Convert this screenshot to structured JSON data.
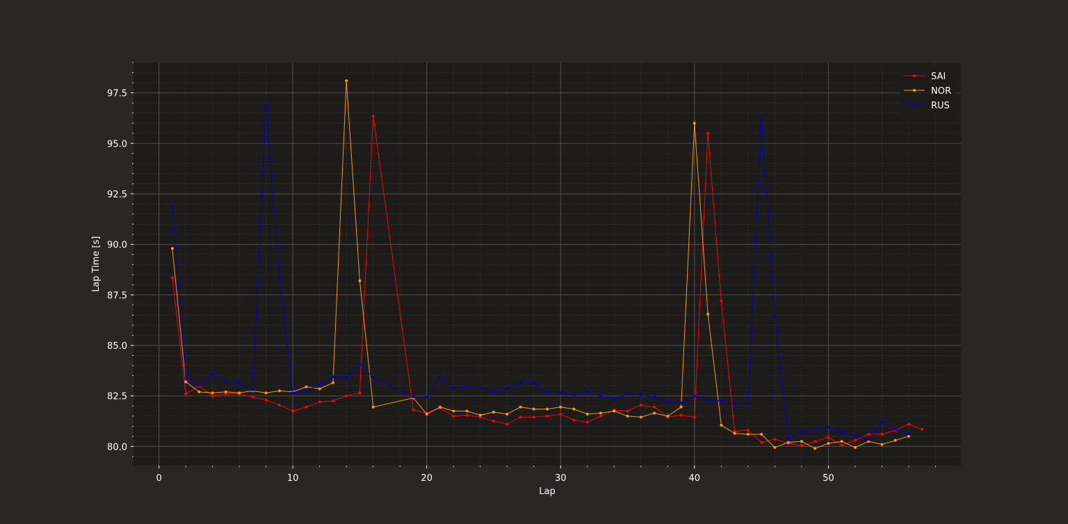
{
  "colors": {
    "figure_bg": "#292625",
    "plot_bg": "#1e1c1b",
    "grid_major": "#4a4745",
    "grid_minor": "#353230",
    "text": "#ffffff"
  },
  "chart_data": {
    "type": "line",
    "xlabel": "Lap",
    "ylabel": "Lap Time [s]",
    "xlim": [
      -1.9,
      59.9
    ],
    "ylim": [
      79.05,
      99.0
    ],
    "xticks": [
      0,
      10,
      20,
      30,
      40,
      50
    ],
    "xtick_labels": [
      "0",
      "10",
      "20",
      "30",
      "40",
      "50"
    ],
    "yticks": [
      80.0,
      82.5,
      85.0,
      87.5,
      90.0,
      92.5,
      95.0,
      97.5
    ],
    "ytick_labels": [
      "80.0",
      "82.5",
      "85.0",
      "87.5",
      "90.0",
      "92.5",
      "95.0",
      "97.5"
    ],
    "grid": true,
    "minor_grid": true,
    "legend_position": "top-right",
    "series": [
      {
        "name": "SAI",
        "color": "#ff0000",
        "x": [
          1,
          2,
          3,
          4,
          5,
          6,
          7,
          8,
          9,
          10,
          11,
          12,
          13,
          14,
          15,
          16,
          19,
          20,
          21,
          22,
          23,
          24,
          25,
          26,
          27,
          28,
          29,
          30,
          31,
          32,
          33,
          34,
          35,
          36,
          37,
          38,
          39,
          40,
          41,
          42,
          43,
          44,
          45,
          46,
          47,
          48,
          49,
          50,
          51,
          52,
          53,
          54,
          55,
          56,
          57
        ],
        "y": [
          88.35,
          82.6,
          83.0,
          82.5,
          82.6,
          82.6,
          82.45,
          82.3,
          82.05,
          81.75,
          81.95,
          82.2,
          82.25,
          82.5,
          82.65,
          96.35,
          81.8,
          81.65,
          81.9,
          81.5,
          81.55,
          81.45,
          81.25,
          81.1,
          81.45,
          81.45,
          81.5,
          81.6,
          81.3,
          81.2,
          81.5,
          81.8,
          81.75,
          82.05,
          81.95,
          81.45,
          81.55,
          81.45,
          95.5,
          87.2,
          80.75,
          80.8,
          80.2,
          80.35,
          80.15,
          80.05,
          80.25,
          80.45,
          80.05,
          80.3,
          80.6,
          80.6,
          80.8,
          81.1,
          80.85
        ]
      },
      {
        "name": "NOR",
        "color": "#ff9900",
        "x": [
          1,
          2,
          3,
          4,
          5,
          6,
          7,
          8,
          9,
          10,
          11,
          12,
          13,
          14,
          15,
          16,
          19,
          20,
          21,
          22,
          23,
          24,
          25,
          26,
          27,
          28,
          29,
          30,
          31,
          32,
          33,
          34,
          35,
          36,
          37,
          38,
          39,
          40,
          41,
          42,
          43,
          44,
          45,
          46,
          47,
          48,
          49,
          50,
          51,
          52,
          53,
          54,
          55,
          56
        ],
        "y": [
          89.8,
          83.2,
          82.7,
          82.65,
          82.7,
          82.65,
          82.75,
          82.65,
          82.75,
          82.7,
          82.95,
          82.85,
          83.15,
          98.1,
          88.2,
          81.95,
          82.4,
          81.6,
          81.95,
          81.75,
          81.75,
          81.55,
          81.7,
          81.6,
          81.95,
          81.85,
          81.85,
          81.95,
          81.85,
          81.6,
          81.65,
          81.75,
          81.5,
          81.45,
          81.65,
          81.5,
          81.95,
          96.0,
          86.55,
          81.05,
          80.65,
          80.6,
          80.6,
          79.95,
          80.2,
          80.25,
          79.9,
          80.15,
          80.25,
          79.95,
          80.25,
          80.1,
          80.3,
          80.5
        ]
      },
      {
        "name": "RUS",
        "color": "#0000cc",
        "x": [
          1,
          2,
          3,
          4,
          5,
          6,
          7,
          8,
          9,
          10,
          11,
          12,
          13,
          14,
          15,
          16,
          19,
          20,
          21,
          22,
          23,
          24,
          25,
          26,
          27,
          28,
          29,
          30,
          31,
          32,
          33,
          34,
          35,
          36,
          37,
          38,
          39,
          40,
          41,
          42,
          43,
          44,
          45,
          46,
          47,
          48,
          49,
          50,
          51,
          52,
          53,
          54,
          55,
          56
        ],
        "y": [
          91.9,
          83.35,
          83.05,
          83.6,
          83.2,
          83.15,
          82.8,
          96.9,
          88.35,
          82.65,
          82.75,
          83.05,
          83.45,
          83.4,
          84.1,
          83.4,
          82.45,
          82.45,
          83.45,
          82.9,
          83.0,
          82.95,
          82.7,
          82.9,
          83.15,
          83.15,
          82.65,
          82.65,
          82.55,
          82.7,
          82.5,
          82.35,
          82.6,
          82.55,
          82.45,
          82.2,
          82.15,
          82.5,
          82.3,
          82.25,
          82.1,
          82.1,
          96.35,
          86.4,
          80.35,
          80.75,
          80.8,
          80.95,
          80.7,
          80.55,
          80.35,
          81.2,
          80.85,
          80.65
        ]
      }
    ]
  }
}
